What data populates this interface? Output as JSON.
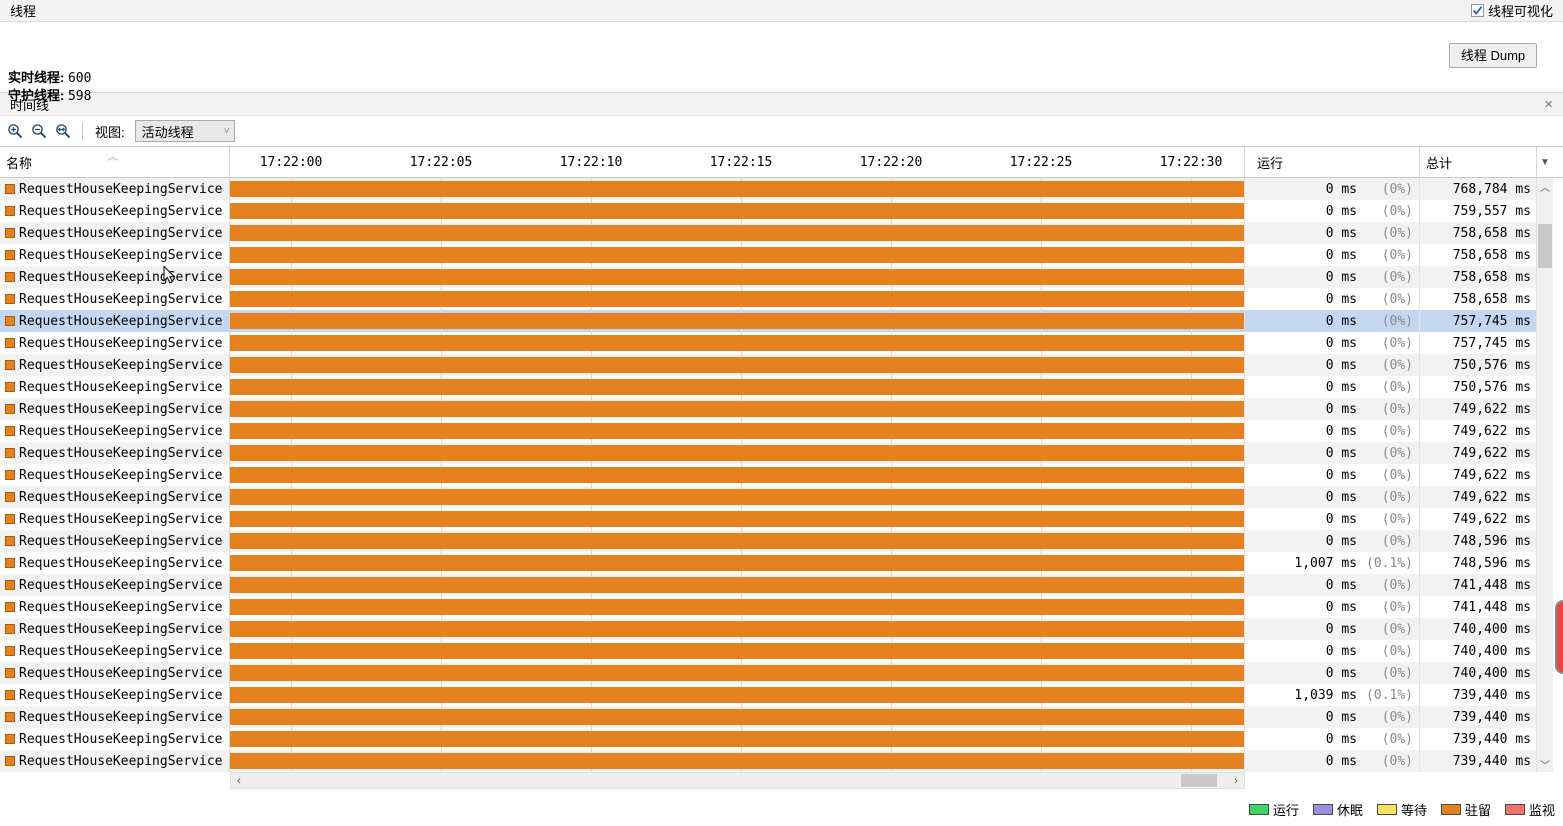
{
  "threads_panel": {
    "title": "线程",
    "visualization_label": "线程可视化",
    "visualization_checked": true,
    "live_label": "实时线程:",
    "live_value": "600",
    "daemon_label": "守护线程:",
    "daemon_value": "598",
    "dump_button": "线程 Dump"
  },
  "timeline_panel": {
    "title": "时间线",
    "close_icon": "×",
    "view_label": "视图:",
    "view_selected": "活动线程"
  },
  "table": {
    "name_header": "名称",
    "running_header": "运行",
    "total_header": "总计",
    "time_ticks": [
      "17:22:00",
      "17:22:05",
      "17:22:10",
      "17:22:15",
      "17:22:20",
      "17:22:25",
      "17:22:30"
    ]
  },
  "rows": [
    {
      "name": "RequestHouseKeepingService",
      "run": "0 ms",
      "pct": "(0%)",
      "total": "768,784 ms",
      "selected": false
    },
    {
      "name": "RequestHouseKeepingService",
      "run": "0 ms",
      "pct": "(0%)",
      "total": "759,557 ms",
      "selected": false
    },
    {
      "name": "RequestHouseKeepingService",
      "run": "0 ms",
      "pct": "(0%)",
      "total": "758,658 ms",
      "selected": false
    },
    {
      "name": "RequestHouseKeepingService",
      "run": "0 ms",
      "pct": "(0%)",
      "total": "758,658 ms",
      "selected": false
    },
    {
      "name": "RequestHouseKeepingService",
      "run": "0 ms",
      "pct": "(0%)",
      "total": "758,658 ms",
      "selected": false
    },
    {
      "name": "RequestHouseKeepingService",
      "run": "0 ms",
      "pct": "(0%)",
      "total": "758,658 ms",
      "selected": false
    },
    {
      "name": "RequestHouseKeepingService",
      "run": "0 ms",
      "pct": "(0%)",
      "total": "757,745 ms",
      "selected": true
    },
    {
      "name": "RequestHouseKeepingService",
      "run": "0 ms",
      "pct": "(0%)",
      "total": "757,745 ms",
      "selected": false
    },
    {
      "name": "RequestHouseKeepingService",
      "run": "0 ms",
      "pct": "(0%)",
      "total": "750,576 ms",
      "selected": false
    },
    {
      "name": "RequestHouseKeepingService",
      "run": "0 ms",
      "pct": "(0%)",
      "total": "750,576 ms",
      "selected": false
    },
    {
      "name": "RequestHouseKeepingService",
      "run": "0 ms",
      "pct": "(0%)",
      "total": "749,622 ms",
      "selected": false
    },
    {
      "name": "RequestHouseKeepingService",
      "run": "0 ms",
      "pct": "(0%)",
      "total": "749,622 ms",
      "selected": false
    },
    {
      "name": "RequestHouseKeepingService",
      "run": "0 ms",
      "pct": "(0%)",
      "total": "749,622 ms",
      "selected": false
    },
    {
      "name": "RequestHouseKeepingService",
      "run": "0 ms",
      "pct": "(0%)",
      "total": "749,622 ms",
      "selected": false
    },
    {
      "name": "RequestHouseKeepingService",
      "run": "0 ms",
      "pct": "(0%)",
      "total": "749,622 ms",
      "selected": false
    },
    {
      "name": "RequestHouseKeepingService",
      "run": "0 ms",
      "pct": "(0%)",
      "total": "749,622 ms",
      "selected": false
    },
    {
      "name": "RequestHouseKeepingService",
      "run": "0 ms",
      "pct": "(0%)",
      "total": "748,596 ms",
      "selected": false
    },
    {
      "name": "RequestHouseKeepingService",
      "run": "1,007 ms",
      "pct": "(0.1%)",
      "total": "748,596 ms",
      "selected": false
    },
    {
      "name": "RequestHouseKeepingService",
      "run": "0 ms",
      "pct": "(0%)",
      "total": "741,448 ms",
      "selected": false
    },
    {
      "name": "RequestHouseKeepingService",
      "run": "0 ms",
      "pct": "(0%)",
      "total": "741,448 ms",
      "selected": false
    },
    {
      "name": "RequestHouseKeepingService",
      "run": "0 ms",
      "pct": "(0%)",
      "total": "740,400 ms",
      "selected": false
    },
    {
      "name": "RequestHouseKeepingService",
      "run": "0 ms",
      "pct": "(0%)",
      "total": "740,400 ms",
      "selected": false
    },
    {
      "name": "RequestHouseKeepingService",
      "run": "0 ms",
      "pct": "(0%)",
      "total": "740,400 ms",
      "selected": false
    },
    {
      "name": "RequestHouseKeepingService",
      "run": "1,039 ms",
      "pct": "(0.1%)",
      "total": "739,440 ms",
      "selected": false
    },
    {
      "name": "RequestHouseKeepingService",
      "run": "0 ms",
      "pct": "(0%)",
      "total": "739,440 ms",
      "selected": false
    },
    {
      "name": "RequestHouseKeepingService",
      "run": "0 ms",
      "pct": "(0%)",
      "total": "739,440 ms",
      "selected": false
    },
    {
      "name": "RequestHouseKeepingService",
      "run": "0 ms",
      "pct": "(0%)",
      "total": "739,440 ms",
      "selected": false
    }
  ],
  "legend": [
    {
      "label": "运行",
      "color": "#3FD464"
    },
    {
      "label": "休眠",
      "color": "#9E8CE0"
    },
    {
      "label": "等待",
      "color": "#F6E25D"
    },
    {
      "label": "驻留",
      "color": "#E5811E"
    },
    {
      "label": "监视",
      "color": "#F4736B"
    }
  ],
  "colors": {
    "bar": "#E5811E",
    "selection": "#C4D7F1",
    "stripe": "#F2F2F2",
    "gridline": "#DCDCDC"
  }
}
